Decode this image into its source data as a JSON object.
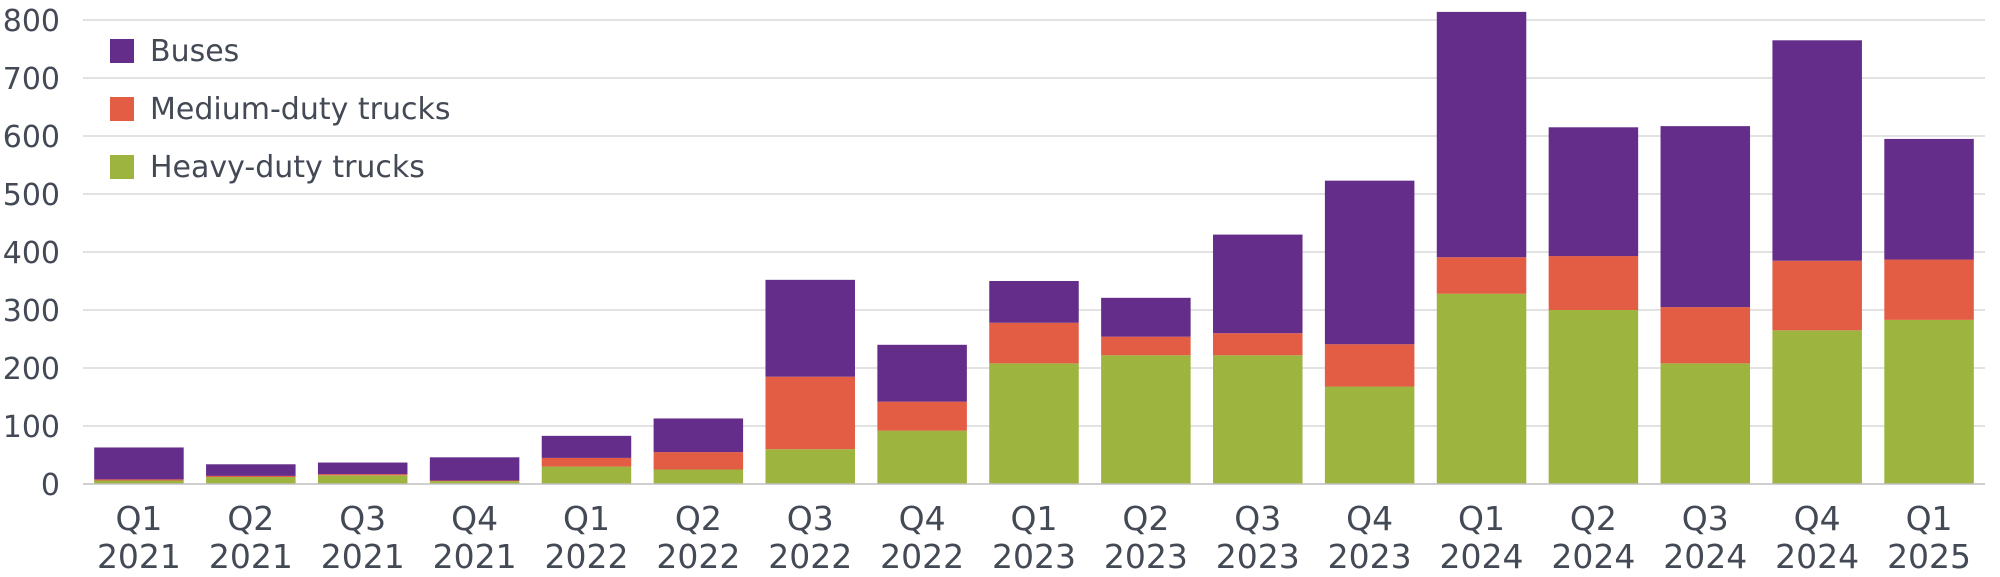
{
  "chart_data": {
    "type": "bar",
    "stacked": true,
    "categories": [
      [
        "Q1",
        "2021"
      ],
      [
        "Q2",
        "2021"
      ],
      [
        "Q3",
        "2021"
      ],
      [
        "Q4",
        "2021"
      ],
      [
        "Q1",
        "2022"
      ],
      [
        "Q2",
        "2022"
      ],
      [
        "Q3",
        "2022"
      ],
      [
        "Q4",
        "2022"
      ],
      [
        "Q1",
        "2023"
      ],
      [
        "Q2",
        "2023"
      ],
      [
        "Q3",
        "2023"
      ],
      [
        "Q4",
        "2023"
      ],
      [
        "Q1",
        "2024"
      ],
      [
        "Q2",
        "2024"
      ],
      [
        "Q3",
        "2024"
      ],
      [
        "Q4",
        "2024"
      ],
      [
        "Q1",
        "2025"
      ]
    ],
    "series": [
      {
        "name": "Heavy-duty trucks",
        "color": "#9db53f",
        "values": [
          6,
          12,
          15,
          5,
          30,
          25,
          60,
          92,
          208,
          222,
          222,
          168,
          328,
          300,
          208,
          265,
          283
        ]
      },
      {
        "name": "Medium-duty trucks",
        "color": "#e35c44",
        "values": [
          2,
          2,
          2,
          1,
          15,
          30,
          125,
          50,
          70,
          32,
          38,
          73,
          63,
          93,
          97,
          120,
          104
        ]
      },
      {
        "name": "Buses",
        "color": "#642d8a",
        "values": [
          55,
          20,
          20,
          40,
          38,
          58,
          167,
          98,
          72,
          67,
          170,
          282,
          423,
          222,
          312,
          380,
          208
        ]
      }
    ],
    "legend_order": [
      "Buses",
      "Medium-duty trucks",
      "Heavy-duty trucks"
    ],
    "legend_position": "top-left",
    "yticks": [
      0,
      100,
      200,
      300,
      400,
      500,
      600,
      700,
      800
    ],
    "ylim": [
      0,
      800
    ],
    "grid": true,
    "title": "",
    "xlabel": "",
    "ylabel": ""
  }
}
